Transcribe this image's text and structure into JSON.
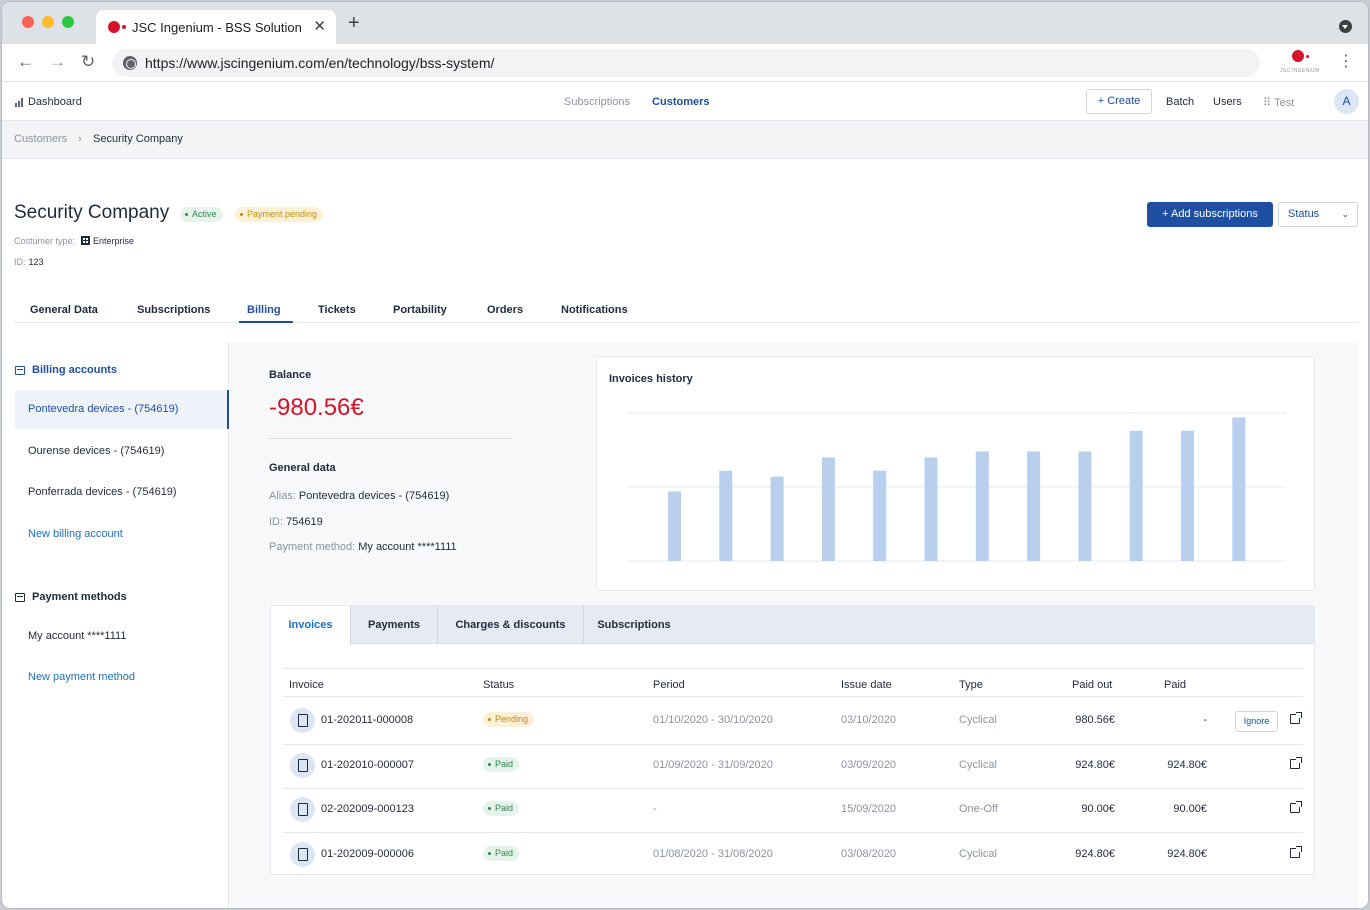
{
  "browser": {
    "tab_title": "JSC Ingenium - BSS Solution",
    "tab_close": "✕",
    "new_tab": "+",
    "url": "https://www.jscingenium.com/en/technology/bss-system/",
    "ext_logo_text": "JSC INGENIUM",
    "menu": "⋮"
  },
  "header": {
    "dashboard": "Dashboard",
    "nav": [
      "Subscriptions",
      "Customers"
    ],
    "create": "+ Create",
    "batch": "Batch",
    "users": "Users",
    "test": "⠿ Test",
    "avatar": "A"
  },
  "breadcrumb": {
    "parent": "Customers",
    "separator": "›",
    "current": "Security Company"
  },
  "customer": {
    "name": "Security Company",
    "badges": [
      "Active",
      "Payment pending"
    ],
    "type_label": "Costumer type:",
    "type_value": "Enterprise",
    "id_label": "ID:",
    "id_value": "123",
    "add_subscriptions": "+ Add subscriptions",
    "status_button": "Status",
    "status_chevron": "⌄"
  },
  "tabs": [
    "General Data",
    "Subscriptions",
    "Billing",
    "Tickets",
    "Portability",
    "Orders",
    "Notifications"
  ],
  "sidebar": {
    "billing_heading": "Billing accounts",
    "accounts": [
      "Pontevedra devices - (754619)",
      "Ourense devices - (754619)",
      "Ponferrada devices - (754619)"
    ],
    "new_billing": "New billing account",
    "payment_heading": "Payment methods",
    "payment_items": [
      "My account ****1111"
    ],
    "new_payment": "New payment method"
  },
  "balance": {
    "label": "Balance",
    "value": "-980.56€"
  },
  "general_data": {
    "heading": "General data",
    "alias_label": "Alias:",
    "alias_value": "Pontevedra devices - (754619)",
    "id_label": "ID:",
    "id_value": "754619",
    "payment_label": "Payment method:",
    "payment_value": "My account ****1111"
  },
  "chart_data": {
    "type": "bar",
    "title": "Invoices history",
    "categories": [
      "",
      "",
      "",
      "",
      "",
      "",
      "",
      "",
      "",
      "",
      "",
      ""
    ],
    "values": [
      47,
      61,
      57,
      70,
      61,
      70,
      74,
      74,
      74,
      88,
      88,
      97
    ],
    "ylim": [
      0,
      100
    ],
    "grid": true,
    "color": "#b8d0ee"
  },
  "subtabs": [
    "Invoices",
    "Payments",
    "Charges & discounts",
    "Subscriptions"
  ],
  "table": {
    "headers": [
      "Invoice",
      "Status",
      "Period",
      "Issue date",
      "Type",
      "Paid out",
      "Paid"
    ],
    "rows": [
      {
        "invoice": "01-202011-000008",
        "status": "Pending",
        "period": "01/10/2020 - 30/10/2020",
        "issue": "03/10/2020",
        "type": "Cyclical",
        "paid_out": "980.56€",
        "paid": "-",
        "action": "Ignore"
      },
      {
        "invoice": "01-202010-000007",
        "status": "Paid",
        "period": "01/09/2020 - 31/09/2020",
        "issue": "03/09/2020",
        "type": "Cyclical",
        "paid_out": "924.80€",
        "paid": "924.80€"
      },
      {
        "invoice": "02-202009-000123",
        "status": "Paid",
        "period": "-",
        "issue": "15/09/2020",
        "type": "One-Off",
        "paid_out": "90.00€",
        "paid": "90.00€"
      },
      {
        "invoice": "01-202009-000006",
        "status": "Paid",
        "period": "01/08/2020 - 31/08/2020",
        "issue": "03/08/2020",
        "type": "Cyclical",
        "paid_out": "924.80€",
        "paid": "924.80€"
      }
    ]
  }
}
